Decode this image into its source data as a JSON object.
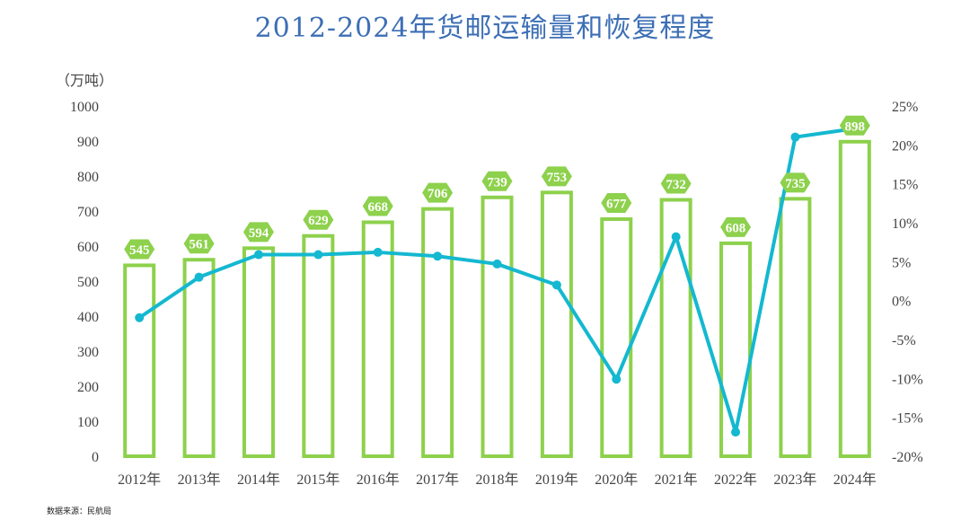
{
  "chart_data": {
    "type": "bar",
    "title": "2012-2024年货邮运输量和恢复程度",
    "ylabel": "（万吨）",
    "categories": [
      "2012年",
      "2013年",
      "2014年",
      "2015年",
      "2016年",
      "2017年",
      "2018年",
      "2019年",
      "2020年",
      "2021年",
      "2022年",
      "2023年",
      "2024年"
    ],
    "ylim": [
      0,
      1000
    ],
    "y_ticks": [
      "0",
      "100",
      "200",
      "300",
      "400",
      "500",
      "600",
      "700",
      "800",
      "900",
      "1000"
    ],
    "y2lim": [
      -20,
      25
    ],
    "y2_ticks": [
      "-20%",
      "-15%",
      "-10%",
      "-5%",
      "0%",
      "5%",
      "10%",
      "15%",
      "20%",
      "25%"
    ],
    "series": [
      {
        "values": [
          545,
          561,
          594,
          629,
          668,
          706,
          739,
          753,
          677,
          732,
          608,
          735,
          898
        ],
        "labels": [
          "545",
          "561",
          "594",
          "629",
          "668",
          "706",
          "739",
          "753",
          "677",
          "732",
          "608",
          "735",
          "898"
        ],
        "axis": "left",
        "type": "bar",
        "color": "#8dd14c"
      },
      {
        "values": [
          -2.2,
          3.0,
          5.9,
          5.9,
          6.2,
          5.7,
          4.7,
          2.0,
          -10.1,
          8.2,
          -16.9,
          21.0,
          22.1
        ],
        "axis": "right",
        "type": "line",
        "color": "#14b8d0"
      }
    ],
    "label_color": "#8dd14c",
    "grid": false
  },
  "source_note": "数据来源：民航局"
}
